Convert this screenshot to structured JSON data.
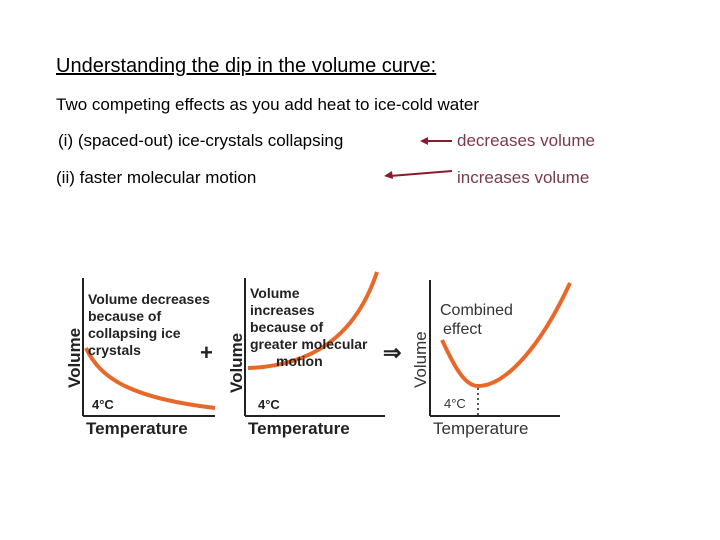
{
  "heading": "Understanding the dip in the volume curve:",
  "subheading": "Two competing effects as you add heat to ice-cold water",
  "effects": [
    {
      "cause": "(i) (spaced-out) ice-crystals collapsing",
      "result": "decreases volume"
    },
    {
      "cause": "(ii) faster molecular motion",
      "result": "increases volume"
    }
  ],
  "graphs": {
    "graph1": {
      "ylabel": "Volume",
      "xlabel": "Temperature",
      "tick": "4°C",
      "annotation": [
        "Volume decreases",
        "because of",
        "collapsing ice",
        "crystals"
      ]
    },
    "graph2": {
      "ylabel": "Volume",
      "xlabel": "Temperature",
      "tick": "4°C",
      "annotation": [
        "Volume",
        "increases",
        "because of",
        "greater molecular",
        "motion"
      ]
    },
    "graph3": {
      "ylabel": "Volume",
      "xlabel": "Temperature",
      "tick": "4°C",
      "annotation": [
        "Combined",
        "effect"
      ]
    },
    "plus": "+",
    "implies": "⇒"
  },
  "colors": {
    "curve": "#e8682a",
    "result_text": "#7a3a4a",
    "arrow": "#8b1a2b"
  }
}
